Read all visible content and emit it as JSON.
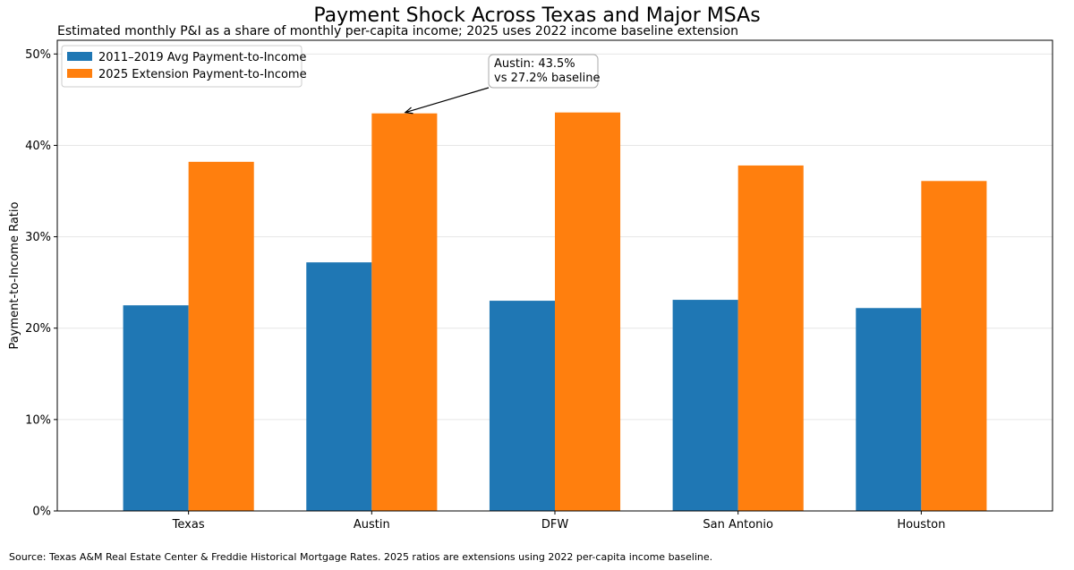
{
  "chart_data": {
    "type": "bar",
    "title": "Payment Shock Across Texas and Major MSAs",
    "subtitle": "Estimated monthly P&I as a share of monthly per-capita income; 2025 uses 2022 income baseline extension",
    "xlabel": "",
    "ylabel": "Payment-to-Income Ratio",
    "categories": [
      "Texas",
      "Austin",
      "DFW",
      "San Antonio",
      "Houston"
    ],
    "series": [
      {
        "name": "2011–2019 Avg Payment-to-Income",
        "color": "#1f77b4",
        "values": [
          22.5,
          27.2,
          23.0,
          23.1,
          22.2
        ]
      },
      {
        "name": "2025 Extension Payment-to-Income",
        "color": "#ff7f0e",
        "values": [
          38.2,
          43.5,
          43.6,
          37.8,
          36.1
        ]
      }
    ],
    "ylim": [
      0,
      51.5
    ],
    "yticks": [
      0,
      10,
      20,
      30,
      40,
      50
    ],
    "ytick_labels": [
      "0%",
      "10%",
      "20%",
      "30%",
      "40%",
      "50%"
    ],
    "grid": "y",
    "legend_position": "top-left",
    "annotation": {
      "lines": [
        "Austin: 43.5%",
        "vs 27.2% baseline"
      ],
      "target_category": "Austin",
      "target_series": 1,
      "target_value": 43.5
    },
    "source": "Source: Texas A&M Real Estate Center & Freddie Historical Mortgage Rates. 2025 ratios are extensions using 2022 per-capita income baseline."
  }
}
